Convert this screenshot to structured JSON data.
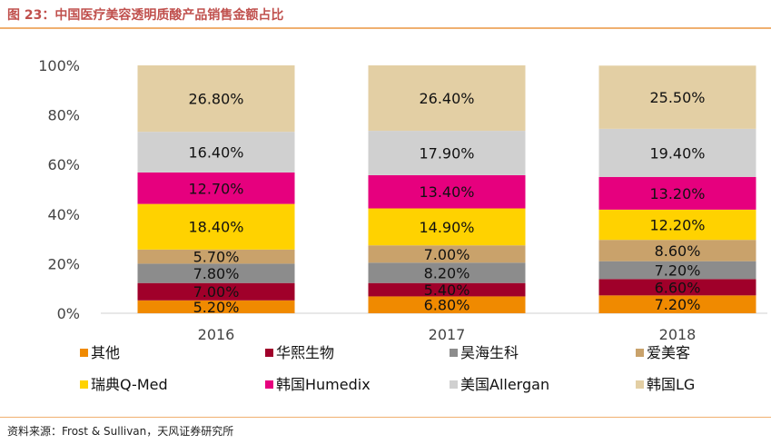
{
  "header": {
    "title": "图 23：中国医疗美容透明质酸产品销售金额占比"
  },
  "footer": {
    "source": "资料来源：Frost & Sullivan，天风证券研究所"
  },
  "chart_data": {
    "type": "bar",
    "stacked": true,
    "categories": [
      "2016",
      "2017",
      "2018"
    ],
    "ylim": [
      0,
      100
    ],
    "y_ticks": [
      "0%",
      "20%",
      "40%",
      "60%",
      "80%",
      "100%"
    ],
    "grid": false,
    "legend_position": "bottom",
    "series": [
      {
        "name": "其他",
        "color": "#f08a00",
        "values": [
          5.2,
          6.8,
          7.2
        ],
        "labels": [
          "5.20%",
          "6.80%",
          "7.20%"
        ]
      },
      {
        "name": "华熙生物",
        "color": "#a0002a",
        "values": [
          7.0,
          5.4,
          6.6
        ],
        "labels": [
          "7.00%",
          "5.40%",
          "6.60%"
        ]
      },
      {
        "name": "昊海生科",
        "color": "#8c8c8c",
        "values": [
          7.8,
          8.2,
          7.2
        ],
        "labels": [
          "7.80%",
          "8.20%",
          "7.20%"
        ]
      },
      {
        "name": "爱美客",
        "color": "#c9a26b",
        "values": [
          5.7,
          7.0,
          8.6
        ],
        "labels": [
          "5.70%",
          "7.00%",
          "8.60%"
        ]
      },
      {
        "name": "瑞典Q-Med",
        "color": "#ffd200",
        "values": [
          18.4,
          14.9,
          12.2
        ],
        "labels": [
          "18.40%",
          "14.90%",
          "12.20%"
        ]
      },
      {
        "name": "韩国Humedix",
        "color": "#e6007e",
        "values": [
          12.7,
          13.4,
          13.2
        ],
        "labels": [
          "12.70%",
          "13.40%",
          "13.20%"
        ]
      },
      {
        "name": "美国Allergan",
        "color": "#d0d0d0",
        "values": [
          16.4,
          17.9,
          19.4
        ],
        "labels": [
          "16.40%",
          "17.90%",
          "19.40%"
        ]
      },
      {
        "name": "韩国LG",
        "color": "#e3cfa4",
        "values": [
          26.8,
          26.4,
          25.5
        ],
        "labels": [
          "26.80%",
          "26.40%",
          "25.50%"
        ]
      }
    ]
  }
}
